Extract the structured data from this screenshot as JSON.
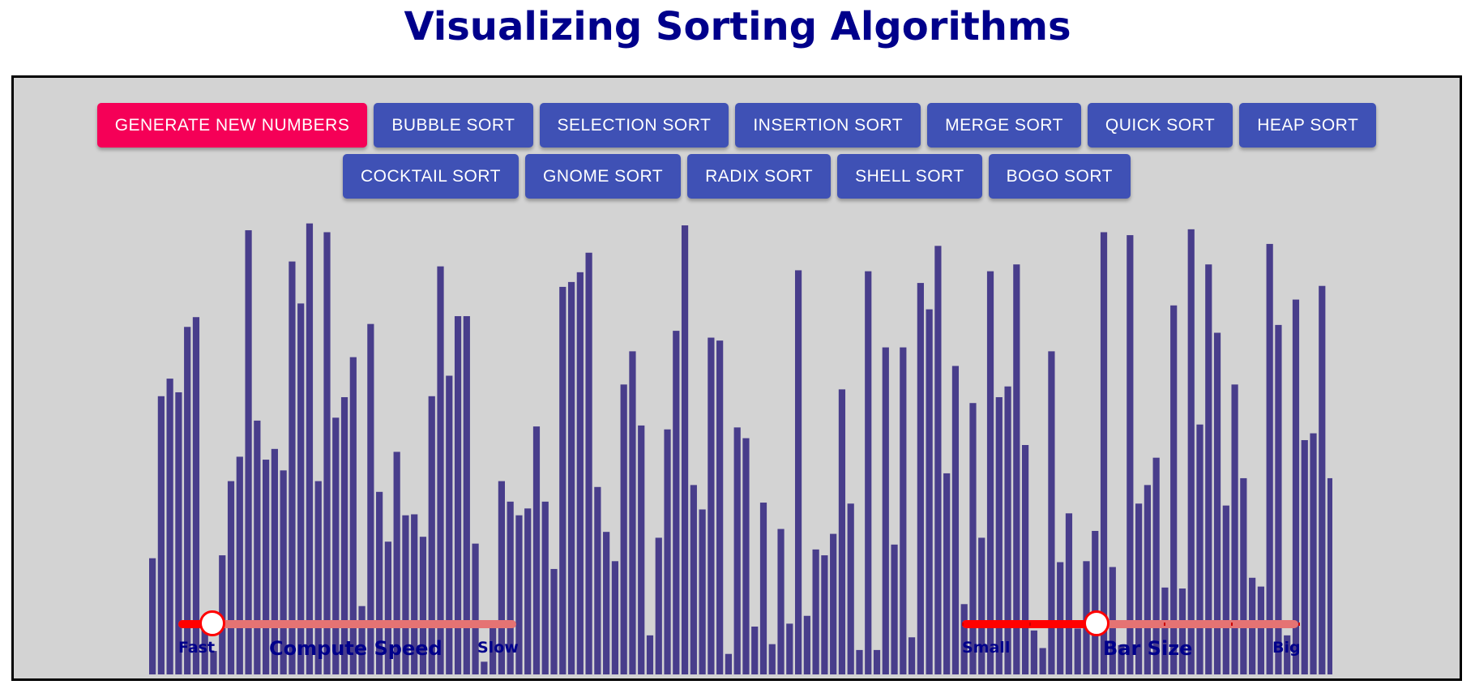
{
  "page": {
    "title": "Visualizing Sorting Algorithms"
  },
  "toolbar": {
    "row1": [
      {
        "label": "GENERATE NEW NUMBERS",
        "name": "generate-new-numbers-button",
        "kind": "gen"
      },
      {
        "label": "BUBBLE SORT",
        "name": "bubble-sort-button"
      },
      {
        "label": "SELECTION SORT",
        "name": "selection-sort-button"
      },
      {
        "label": "INSERTION SORT",
        "name": "insertion-sort-button"
      },
      {
        "label": "MERGE SORT",
        "name": "merge-sort-button"
      },
      {
        "label": "QUICK SORT",
        "name": "quick-sort-button"
      },
      {
        "label": "HEAP SORT",
        "name": "heap-sort-button"
      }
    ],
    "row2": [
      {
        "label": "COCKTAIL SORT",
        "name": "cocktail-sort-button"
      },
      {
        "label": "GNOME SORT",
        "name": "gnome-sort-button"
      },
      {
        "label": "RADIX SORT",
        "name": "radix-sort-button"
      },
      {
        "label": "SHELL SORT",
        "name": "shell-sort-button"
      },
      {
        "label": "BOGO SORT",
        "name": "bogo-sort-button"
      }
    ]
  },
  "colors": {
    "bar": "#483d8b",
    "button": "#3f51b5",
    "generate_button": "#f50057",
    "panel": "#d3d3d3",
    "title": "#00008b",
    "slider": "#ff0000",
    "slider_track": "#e57373"
  },
  "bars": {
    "values": [
      119,
      285,
      303,
      289,
      356,
      366,
      53,
      24,
      122,
      198,
      223,
      455,
      260,
      220,
      231,
      209,
      423,
      380,
      462,
      198,
      453,
      263,
      284,
      325,
      70,
      359,
      187,
      136,
      228,
      163,
      164,
      141,
      285,
      418,
      306,
      367,
      367,
      134,
      13,
      53,
      198,
      177,
      163,
      170,
      254,
      177,
      108,
      397,
      402,
      412,
      432,
      192,
      146,
      116,
      297,
      331,
      255,
      40,
      140,
      251,
      352,
      460,
      194,
      169,
      345,
      342,
      21,
      253,
      242,
      49,
      176,
      31,
      149,
      52,
      414,
      60,
      128,
      122,
      144,
      292,
      175,
      25,
      413,
      25,
      335,
      133,
      335,
      38,
      401,
      374,
      439,
      206,
      316,
      72,
      278,
      140,
      413,
      284,
      295,
      420,
      235,
      45,
      27,
      331,
      115,
      165,
      47,
      116,
      147,
      453,
      110,
      30,
      450,
      175,
      194,
      222,
      89,
      378,
      88,
      456,
      256,
      420,
      350,
      173,
      297,
      201,
      99,
      90,
      441,
      358,
      40,
      384,
      240,
      247,
      398,
      201
    ],
    "max": 470
  },
  "speed_slider": {
    "label": "Compute Speed",
    "min_label": "Fast",
    "max_label": "Slow",
    "level": 0.1
  },
  "size_slider": {
    "label": "Bar Size",
    "min_label": "Small",
    "max_label": "Big",
    "level": 0.4,
    "ticks": 6
  }
}
